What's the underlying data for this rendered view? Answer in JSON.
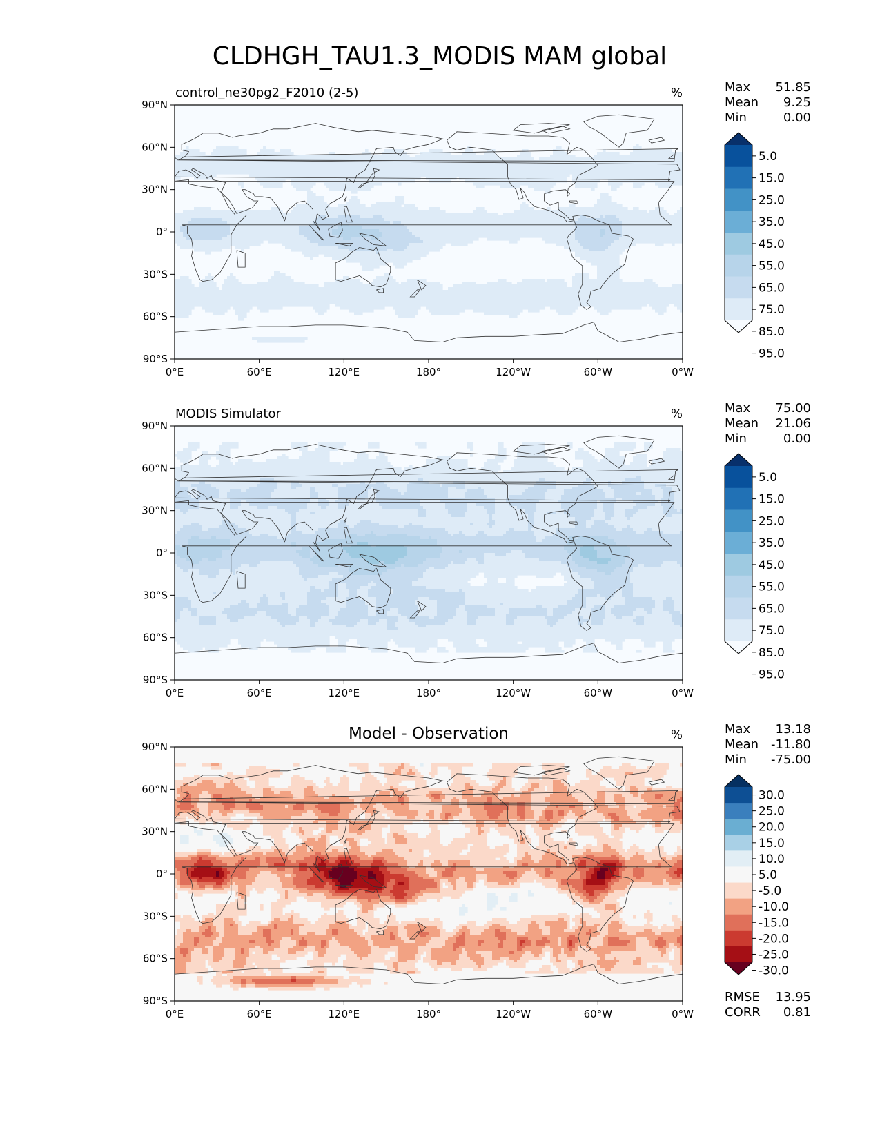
{
  "figure": {
    "title": "CLDHGH_TAU1.3_MODIS MAM global"
  },
  "stat_labels": {
    "max": "Max",
    "mean": "Mean",
    "min": "Min",
    "rmse": "RMSE",
    "corr": "CORR"
  },
  "colors": {
    "blues": [
      "#f7fbff",
      "#deebf7",
      "#c6dbef",
      "#b7d4ea",
      "#9ecae1",
      "#6baed6",
      "#4292c6",
      "#2171b5",
      "#08519c",
      "#08306b"
    ],
    "diverging": [
      "#67001f",
      "#a50f15",
      "#cb3a30",
      "#e0705a",
      "#f2a283",
      "#fbd9c9",
      "#f7f7f7",
      "#e2eef5",
      "#a9d0e6",
      "#6aaed2",
      "#3a7fbd",
      "#0d4f94",
      "#053061"
    ],
    "land_line": "#333333",
    "ocean_bg": "#f7fbff"
  },
  "chart_data": [
    {
      "type": "heatmap",
      "title": "control_ne30pg2_F2010 (2-5)",
      "units": "%",
      "xlabel": "",
      "ylabel": "",
      "xtick_labels": [
        "0°E",
        "60°E",
        "120°E",
        "180°",
        "120°W",
        "60°W",
        "0°W"
      ],
      "ytick_labels": [
        "90°N",
        "60°N",
        "30°N",
        "0°",
        "30°S",
        "60°S",
        "90°S"
      ],
      "xlim": [
        0,
        360
      ],
      "ylim": [
        -90,
        90
      ],
      "stats": {
        "max": "51.85",
        "mean": "9.25",
        "min": "0.00"
      },
      "colorbar": {
        "extend": "both",
        "levels": [
          "5.0",
          "15.0",
          "25.0",
          "35.0",
          "45.0",
          "55.0",
          "65.0",
          "75.0",
          "85.0",
          "95.0"
        ]
      }
    },
    {
      "type": "heatmap",
      "title": "MODIS Simulator",
      "units": "%",
      "xlabel": "",
      "ylabel": "",
      "xtick_labels": [
        "0°E",
        "60°E",
        "120°E",
        "180°",
        "120°W",
        "60°W",
        "0°W"
      ],
      "ytick_labels": [
        "90°N",
        "60°N",
        "30°N",
        "0°",
        "30°S",
        "60°S",
        "90°S"
      ],
      "xlim": [
        0,
        360
      ],
      "ylim": [
        -90,
        90
      ],
      "stats": {
        "max": "75.00",
        "mean": "21.06",
        "min": "0.00"
      },
      "colorbar": {
        "extend": "both",
        "levels": [
          "5.0",
          "15.0",
          "25.0",
          "35.0",
          "45.0",
          "55.0",
          "65.0",
          "75.0",
          "85.0",
          "95.0"
        ]
      }
    },
    {
      "type": "heatmap",
      "title": "Model - Observation",
      "units": "%",
      "xlabel": "",
      "ylabel": "",
      "xtick_labels": [
        "0°E",
        "60°E",
        "120°E",
        "180°",
        "120°W",
        "60°W",
        "0°W"
      ],
      "ytick_labels": [
        "90°N",
        "60°N",
        "30°N",
        "0°",
        "30°S",
        "60°S",
        "90°S"
      ],
      "xlim": [
        0,
        360
      ],
      "ylim": [
        -90,
        90
      ],
      "stats": {
        "max": "13.18",
        "mean": "-11.80",
        "min": "-75.00",
        "rmse": "13.95",
        "corr": "0.81"
      },
      "colorbar": {
        "extend": "both",
        "levels": [
          "30.0",
          "25.0",
          "20.0",
          "15.0",
          "10.0",
          "5.0",
          "-5.0",
          "-10.0",
          "-15.0",
          "-20.0",
          "-25.0",
          "-30.0"
        ]
      }
    }
  ]
}
